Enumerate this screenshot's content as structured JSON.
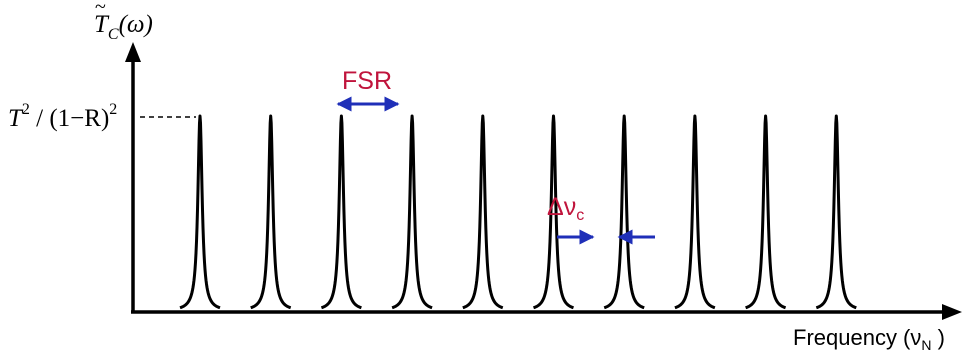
{
  "colors": {
    "curve": "#000000",
    "axis": "#000000",
    "annotation_text": "#c0143c",
    "arrow": "#1f2fb8"
  },
  "y_axis_label": {
    "main": "T",
    "subscript": "C",
    "arg": "(ω)"
  },
  "peak_level_label": {
    "t": "T",
    "exp1": "2",
    "mid": " / (1−R)",
    "exp2": "2"
  },
  "x_axis_label": {
    "prefix": "Frequency (ν",
    "subscript": "N",
    "suffix": " )"
  },
  "fsr_label": "FSR",
  "linewidth_label": {
    "main": "Δν",
    "subscript": "c"
  },
  "peak_count": 10
}
